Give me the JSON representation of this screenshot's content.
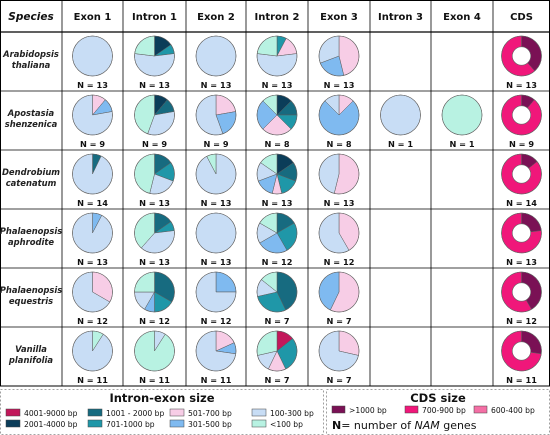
{
  "chart_data": {
    "type": "pie",
    "header": {
      "species": "Species",
      "columns": [
        "Exon 1",
        "Intron 1",
        "Exon 2",
        "Intron 2",
        "Exon 3",
        "Intron 3",
        "Exon 4",
        "CDS"
      ]
    },
    "size_legend": {
      "title": "Intron-exon size",
      "items": [
        {
          "label": "4001-9000 bp",
          "color": "#c2185b"
        },
        {
          "label": "2001-4000 bp",
          "color": "#0b3d59"
        },
        {
          "label": "1001 - 2000 bp",
          "color": "#176b80"
        },
        {
          "label": "701-1000 bp",
          "color": "#1f97a8"
        },
        {
          "label": "501-700 bp",
          "color": "#f7cde6"
        },
        {
          "label": "301-500 bp",
          "color": "#7fbaf0"
        },
        {
          "label": "100-300 bp",
          "color": "#c8ddf5"
        },
        {
          "label": "<100 bp",
          "color": "#b8f2e2"
        }
      ]
    },
    "cds_legend": {
      "title": "CDS size",
      "items": [
        {
          "label": ">1000 bp",
          "color": "#7a1155"
        },
        {
          "label": "700-900 bp",
          "color": "#f0177a"
        },
        {
          "label": "600-400 bp",
          "color": "#f46fa5"
        }
      ],
      "note_prefix": "N",
      "note_rest": "= number of",
      "note_italic": "NAM",
      "note_suffix": "genes"
    },
    "rows": [
      {
        "species": [
          "Arabidopsis",
          "thaliana"
        ],
        "cells": [
          {
            "n": "N = 13",
            "slices": [
              {
                "size": "100-300 bp",
                "value": 13
              }
            ]
          },
          {
            "n": "N = 13",
            "slices": [
              {
                "size": "2001-4000 bp",
                "value": 2
              },
              {
                "size": "701-1000 bp",
                "value": 1
              },
              {
                "size": "100-300 bp",
                "value": 7
              },
              {
                "size": "<100 bp",
                "value": 3
              }
            ]
          },
          {
            "n": "N = 13",
            "slices": [
              {
                "size": "100-300 bp",
                "value": 13
              }
            ]
          },
          {
            "n": "N = 13",
            "slices": [
              {
                "size": "701-1000 bp",
                "value": 1
              },
              {
                "size": "501-700 bp",
                "value": 2
              },
              {
                "size": "100-300 bp",
                "value": 7
              },
              {
                "size": "<100 bp",
                "value": 3
              }
            ]
          },
          {
            "n": "N = 13",
            "slices": [
              {
                "size": "501-700 bp",
                "value": 6
              },
              {
                "size": "301-500 bp",
                "value": 3
              },
              {
                "size": "100-300 bp",
                "value": 4
              }
            ]
          },
          null,
          null,
          {
            "n": "N = 13",
            "slices": [
              {
                "size": ">1000 bp",
                "value": 5
              },
              {
                "size": "700-900 bp",
                "value": 8
              }
            ]
          }
        ]
      },
      {
        "species": [
          "Apostasia",
          "shenzenica"
        ],
        "cells": [
          {
            "n": "N = 9",
            "slices": [
              {
                "size": "501-700 bp",
                "value": 1
              },
              {
                "size": "301-500 bp",
                "value": 1
              },
              {
                "size": "100-300 bp",
                "value": 7
              }
            ]
          },
          {
            "n": "N = 9",
            "slices": [
              {
                "size": "2001-4000 bp",
                "value": 1
              },
              {
                "size": "1001 - 2000 bp",
                "value": 1
              },
              {
                "size": "100-300 bp",
                "value": 3
              },
              {
                "size": "<100 bp",
                "value": 4
              }
            ]
          },
          {
            "n": "N = 9",
            "slices": [
              {
                "size": "501-700 bp",
                "value": 2
              },
              {
                "size": "301-500 bp",
                "value": 2
              },
              {
                "size": "100-300 bp",
                "value": 5
              }
            ]
          },
          {
            "n": "N = 8",
            "slices": [
              {
                "size": "2001-4000 bp",
                "value": 1
              },
              {
                "size": "1001 - 2000 bp",
                "value": 1
              },
              {
                "size": "701-1000 bp",
                "value": 1
              },
              {
                "size": "501-700 bp",
                "value": 2
              },
              {
                "size": "301-500 bp",
                "value": 2
              },
              {
                "size": "<100 bp",
                "value": 1
              }
            ]
          },
          {
            "n": "N = 8",
            "slices": [
              {
                "size": "501-700 bp",
                "value": 1
              },
              {
                "size": "301-500 bp",
                "value": 6
              },
              {
                "size": "100-300 bp",
                "value": 1
              }
            ]
          },
          {
            "n": "N = 1",
            "slices": [
              {
                "size": "100-300 bp",
                "value": 1
              }
            ]
          },
          {
            "n": "N = 1",
            "slices": [
              {
                "size": "<100 bp",
                "value": 1
              }
            ]
          },
          {
            "n": "N = 9",
            "slices": [
              {
                "size": ">1000 bp",
                "value": 1
              },
              {
                "size": "700-900 bp",
                "value": 8
              }
            ]
          }
        ]
      },
      {
        "species": [
          "Dendrobium",
          "catenatum"
        ],
        "cells": [
          {
            "n": "N = 14",
            "slices": [
              {
                "size": "1001 - 2000 bp",
                "value": 1
              },
              {
                "size": "100-300 bp",
                "value": 13
              }
            ]
          },
          {
            "n": "N = 13",
            "slices": [
              {
                "size": "1001 - 2000 bp",
                "value": 2
              },
              {
                "size": "701-1000 bp",
                "value": 2
              },
              {
                "size": "100-300 bp",
                "value": 3
              },
              {
                "size": "<100 bp",
                "value": 6
              }
            ]
          },
          {
            "n": "N = 13",
            "slices": [
              {
                "size": "100-300 bp",
                "value": 12
              },
              {
                "size": "<100 bp",
                "value": 1
              }
            ]
          },
          {
            "n": "N = 13",
            "slices": [
              {
                "size": "2001-4000 bp",
                "value": 2
              },
              {
                "size": "1001 - 2000 bp",
                "value": 2
              },
              {
                "size": "701-1000 bp",
                "value": 2
              },
              {
                "size": "501-700 bp",
                "value": 1
              },
              {
                "size": "301-500 bp",
                "value": 2
              },
              {
                "size": "100-300 bp",
                "value": 2
              },
              {
                "size": "<100 bp",
                "value": 2
              }
            ]
          },
          {
            "n": "N = 13",
            "slices": [
              {
                "size": "501-700 bp",
                "value": 7
              },
              {
                "size": "100-300 bp",
                "value": 6
              }
            ]
          },
          null,
          null,
          {
            "n": "N = 14",
            "slices": [
              {
                "size": ">1000 bp",
                "value": 2
              },
              {
                "size": "700-900 bp",
                "value": 12
              }
            ]
          }
        ]
      },
      {
        "species": [
          "Phalaenopsis",
          "aphrodite"
        ],
        "cells": [
          {
            "n": "N = 13",
            "slices": [
              {
                "size": "301-500 bp",
                "value": 1
              },
              {
                "size": "100-300 bp",
                "value": 12
              }
            ]
          },
          {
            "n": "N = 13",
            "slices": [
              {
                "size": "1001 - 2000 bp",
                "value": 2
              },
              {
                "size": "701-1000 bp",
                "value": 1
              },
              {
                "size": "100-300 bp",
                "value": 5
              },
              {
                "size": "<100 bp",
                "value": 5
              }
            ]
          },
          {
            "n": "N = 13",
            "slices": [
              {
                "size": "100-300 bp",
                "value": 13
              }
            ]
          },
          {
            "n": "N = 12",
            "slices": [
              {
                "size": "1001 - 2000 bp",
                "value": 2
              },
              {
                "size": "701-1000 bp",
                "value": 3
              },
              {
                "size": "301-500 bp",
                "value": 3
              },
              {
                "size": "100-300 bp",
                "value": 2
              },
              {
                "size": "<100 bp",
                "value": 2
              }
            ]
          },
          {
            "n": "N = 12",
            "slices": [
              {
                "size": "501-700 bp",
                "value": 5
              },
              {
                "size": "100-300 bp",
                "value": 7
              }
            ]
          },
          null,
          null,
          {
            "n": "N = 13",
            "slices": [
              {
                "size": ">1000 bp",
                "value": 3
              },
              {
                "size": "700-900 bp",
                "value": 10
              }
            ]
          }
        ]
      },
      {
        "species": [
          "Phalaenopsis",
          "equestris"
        ],
        "cells": [
          {
            "n": "N = 12",
            "slices": [
              {
                "size": "501-700 bp",
                "value": 4
              },
              {
                "size": "100-300 bp",
                "value": 8
              }
            ]
          },
          {
            "n": "N = 12",
            "slices": [
              {
                "size": "1001 - 2000 bp",
                "value": 4
              },
              {
                "size": "701-1000 bp",
                "value": 2
              },
              {
                "size": "301-500 bp",
                "value": 1
              },
              {
                "size": "100-300 bp",
                "value": 2
              },
              {
                "size": "<100 bp",
                "value": 3
              }
            ]
          },
          {
            "n": "N = 12",
            "slices": [
              {
                "size": "301-500 bp",
                "value": 3
              },
              {
                "size": "100-300 bp",
                "value": 9
              }
            ]
          },
          {
            "n": "N = 7",
            "slices": [
              {
                "size": "1001 - 2000 bp",
                "value": 3
              },
              {
                "size": "701-1000 bp",
                "value": 2
              },
              {
                "size": "100-300 bp",
                "value": 1
              },
              {
                "size": "<100 bp",
                "value": 1
              }
            ]
          },
          {
            "n": "N = 7",
            "slices": [
              {
                "size": "501-700 bp",
                "value": 4
              },
              {
                "size": "301-500 bp",
                "value": 3
              }
            ]
          },
          null,
          null,
          {
            "n": "N = 12",
            "slices": [
              {
                "size": ">1000 bp",
                "value": 5
              },
              {
                "size": "700-900 bp",
                "value": 7
              }
            ]
          }
        ]
      },
      {
        "species": [
          "Vanilla",
          "planifolia"
        ],
        "cells": [
          {
            "n": "N = 11",
            "slices": [
              {
                "size": "<100 bp",
                "value": 1
              },
              {
                "size": "100-300 bp",
                "value": 10
              }
            ]
          },
          {
            "n": "N = 11",
            "slices": [
              {
                "size": "100-300 bp",
                "value": 1
              },
              {
                "size": "<100 bp",
                "value": 10
              }
            ]
          },
          {
            "n": "N = 11",
            "slices": [
              {
                "size": "501-700 bp",
                "value": 2
              },
              {
                "size": "301-500 bp",
                "value": 1
              },
              {
                "size": "100-300 bp",
                "value": 8
              }
            ]
          },
          {
            "n": "N = 7",
            "slices": [
              {
                "size": "4001-9000 bp",
                "value": 1
              },
              {
                "size": "701-1000 bp",
                "value": 2
              },
              {
                "size": "501-700 bp",
                "value": 1
              },
              {
                "size": "100-300 bp",
                "value": 1
              },
              {
                "size": "<100 bp",
                "value": 2
              }
            ]
          },
          {
            "n": "N = 7",
            "slices": [
              {
                "size": "501-700 bp",
                "value": 2
              },
              {
                "size": "100-300 bp",
                "value": 5
              }
            ]
          },
          null,
          null,
          {
            "n": "N = 11",
            "slices": [
              {
                "size": ">1000 bp",
                "value": 3
              },
              {
                "size": "700-900 bp",
                "value": 8
              }
            ]
          }
        ]
      }
    ]
  }
}
